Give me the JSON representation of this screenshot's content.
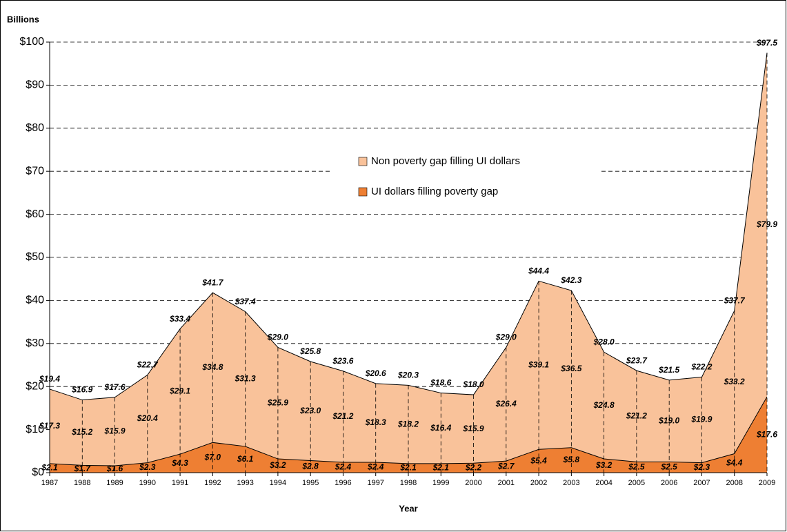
{
  "chart_data": {
    "type": "stacked_area",
    "y_label": "Billions",
    "x_label": "Year",
    "categories": [
      "1987",
      "1988",
      "1989",
      "1990",
      "1991",
      "1992",
      "1993",
      "1994",
      "1995",
      "1996",
      "1997",
      "1998",
      "1999",
      "2000",
      "2001",
      "2002",
      "2003",
      "2004",
      "2005",
      "2006",
      "2007",
      "2008",
      "2009"
    ],
    "series": [
      {
        "name": "UI dollars filling poverty gap",
        "color": "#ee7f33",
        "values": [
          2.1,
          1.7,
          1.6,
          2.3,
          4.3,
          7.0,
          6.1,
          3.2,
          2.8,
          2.4,
          2.4,
          2.1,
          2.1,
          2.2,
          2.7,
          5.4,
          5.8,
          3.2,
          2.5,
          2.5,
          2.3,
          4.4,
          17.6
        ],
        "value_labels": [
          "$2.1",
          "$1.7",
          "$1.6",
          "$2.3",
          "$4.3",
          "$7.0",
          "$6.1",
          "$3.2",
          "$2.8",
          "$2.4",
          "$2.4",
          "$2.1",
          "$2.1",
          "$2.2",
          "$2.7",
          "$5.4",
          "$5.8",
          "$3.2",
          "$2.5",
          "$2.5",
          "$2.3",
          "$4.4",
          "$17.6"
        ]
      },
      {
        "name": "Non poverty gap filling UI dollars",
        "color": "#f9c29a",
        "values": [
          17.3,
          15.2,
          15.9,
          20.4,
          29.1,
          34.8,
          31.3,
          25.9,
          23.0,
          21.2,
          18.3,
          18.2,
          16.4,
          15.9,
          26.4,
          39.1,
          36.5,
          24.8,
          21.2,
          19.0,
          19.9,
          33.2,
          79.9
        ],
        "value_labels": [
          "$17.3",
          "$15.2",
          "$15.9",
          "$20.4",
          "$29.1",
          "$34.8",
          "$31.3",
          "$25.9",
          "$23.0",
          "$21.2",
          "$18.3",
          "$18.2",
          "$16.4",
          "$15.9",
          "$26.4",
          "$39.1",
          "$36.5",
          "$24.8",
          "$21.2",
          "$19.0",
          "$19.9",
          "$33.2",
          "$79.9"
        ]
      }
    ],
    "totals": [
      19.4,
      16.9,
      17.6,
      22.7,
      33.4,
      41.7,
      37.4,
      29.0,
      25.8,
      23.6,
      20.6,
      20.3,
      18.6,
      18.0,
      29.0,
      44.4,
      42.3,
      28.0,
      23.7,
      21.5,
      22.2,
      37.7,
      97.5
    ],
    "total_labels": [
      "$19.4",
      "$16.9",
      "$17.6",
      "$22.7",
      "$33.4",
      "$41.7",
      "$37.4",
      "$29.0",
      "$25.8",
      "$23.6",
      "$20.6",
      "$20.3",
      "$18.6",
      "$18.0",
      "$29.0",
      "$44.4",
      "$42.3",
      "$28.0",
      "$23.7",
      "$21.5",
      "$22.2",
      "$37.7",
      "$97.5"
    ],
    "ylim": [
      0,
      100
    ],
    "yticks": [
      {
        "value": 0,
        "label": "$0"
      },
      {
        "value": 10,
        "label": "$10"
      },
      {
        "value": 20,
        "label": "$20"
      },
      {
        "value": 30,
        "label": "$30"
      },
      {
        "value": 40,
        "label": "$40"
      },
      {
        "value": 50,
        "label": "$50"
      },
      {
        "value": 60,
        "label": "$60"
      },
      {
        "value": 70,
        "label": "$70"
      },
      {
        "value": 80,
        "label": "$80"
      },
      {
        "value": 90,
        "label": "$90"
      },
      {
        "value": 100,
        "label": "$100"
      }
    ],
    "grid": true
  }
}
